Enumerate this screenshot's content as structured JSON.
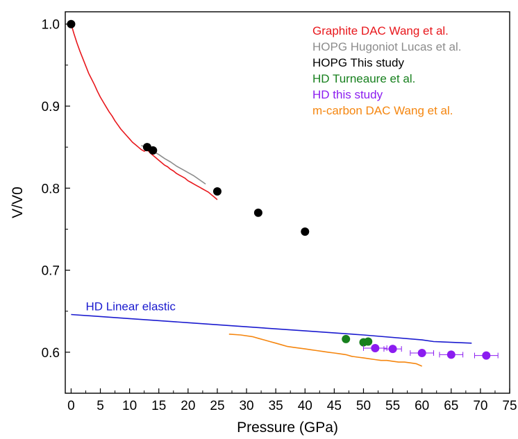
{
  "chart_data": {
    "type": "scatter",
    "title": "",
    "xlabel": "Pressure (GPa)",
    "ylabel": "V/V0",
    "xlim": [
      -1,
      75
    ],
    "ylim": [
      0.55,
      1.015
    ],
    "xticks": [
      0,
      5,
      10,
      15,
      20,
      25,
      30,
      35,
      40,
      45,
      50,
      55,
      60,
      65,
      70,
      75
    ],
    "yticks": [
      0.6,
      0.7,
      0.8,
      0.9,
      1.0
    ],
    "ytick_labels": [
      "0.6",
      "0.7",
      "0.8",
      "0.9",
      "1.0"
    ],
    "grid": false,
    "legend_position": "top-right",
    "series": [
      {
        "name": "Graphite DAC  Wang et al.",
        "kind": "line",
        "color": "#e8171c",
        "x": [
          0,
          0.5,
          1,
          1.5,
          2,
          2.5,
          3,
          3.5,
          4,
          4.5,
          5,
          5.5,
          6,
          6.5,
          7,
          7.5,
          8,
          8.5,
          9,
          9.5,
          10,
          10.5,
          11,
          11.5,
          12,
          12.5,
          13,
          13.5,
          14,
          14.5,
          15,
          15.5,
          16,
          16.5,
          17,
          17.5,
          18,
          18.5,
          19,
          19.5,
          20,
          20.5,
          21,
          21.5,
          22,
          22.5,
          23,
          23.5,
          24,
          24.5,
          25
        ],
        "y": [
          1.0,
          0.988,
          0.977,
          0.967,
          0.958,
          0.949,
          0.94,
          0.933,
          0.926,
          0.918,
          0.911,
          0.905,
          0.899,
          0.893,
          0.888,
          0.882,
          0.877,
          0.872,
          0.868,
          0.864,
          0.86,
          0.856,
          0.853,
          0.85,
          0.847,
          0.845,
          0.847,
          0.843,
          0.84,
          0.837,
          0.834,
          0.831,
          0.828,
          0.826,
          0.823,
          0.821,
          0.818,
          0.816,
          0.814,
          0.812,
          0.809,
          0.807,
          0.805,
          0.803,
          0.801,
          0.799,
          0.797,
          0.795,
          0.792,
          0.789,
          0.786
        ]
      },
      {
        "name": "HOPG Hugoniot Lucas et al.",
        "kind": "line",
        "color": "#8c8c8c",
        "x": [
          12,
          13,
          14,
          15,
          16,
          17,
          18,
          19,
          20,
          21,
          22,
          23
        ],
        "y": [
          0.852,
          0.849,
          0.845,
          0.841,
          0.836,
          0.832,
          0.827,
          0.823,
          0.819,
          0.815,
          0.81,
          0.805
        ]
      },
      {
        "name": "HOPG This study",
        "kind": "scatter",
        "color": "#000000",
        "x": [
          0,
          13,
          14,
          25,
          32,
          40
        ],
        "y": [
          1.0,
          0.85,
          0.846,
          0.796,
          0.77,
          0.747
        ]
      },
      {
        "name": "HD Turneaure et al.",
        "kind": "scatter",
        "color": "#17801e",
        "x": [
          47,
          50,
          50.8
        ],
        "y": [
          0.616,
          0.612,
          0.613
        ]
      },
      {
        "name": "HD this study",
        "kind": "scatter",
        "color": "#8b1cf0",
        "x": [
          52,
          55,
          60,
          65,
          71
        ],
        "y": [
          0.605,
          0.604,
          0.599,
          0.597,
          0.596
        ],
        "xerr": [
          2,
          1.5,
          2,
          2,
          2
        ]
      },
      {
        "name": "m-carbon DAC Wang et al.",
        "kind": "line",
        "color": "#f5860f",
        "x": [
          27,
          29,
          31,
          32,
          33,
          34,
          35,
          36,
          37,
          38,
          39,
          40,
          41,
          42,
          43,
          44,
          45,
          46,
          47,
          48,
          49,
          50,
          51,
          52,
          53,
          54,
          55,
          56,
          57,
          58,
          59,
          60
        ],
        "y": [
          0.622,
          0.621,
          0.619,
          0.617,
          0.615,
          0.613,
          0.611,
          0.609,
          0.607,
          0.606,
          0.605,
          0.604,
          0.603,
          0.602,
          0.601,
          0.6,
          0.599,
          0.598,
          0.597,
          0.595,
          0.594,
          0.593,
          0.592,
          0.591,
          0.59,
          0.59,
          0.589,
          0.588,
          0.588,
          0.587,
          0.586,
          0.583
        ]
      },
      {
        "name": "HD Linear elastic",
        "kind": "line",
        "color": "#1a1acf",
        "x": [
          0,
          10,
          20,
          30,
          40,
          50,
          60,
          62,
          68.5
        ],
        "y": [
          0.646,
          0.641,
          0.636,
          0.631,
          0.626,
          0.621,
          0.615,
          0.613,
          0.611
        ]
      }
    ],
    "legend": [
      {
        "label": "Graphite DAC  Wang et al.",
        "color": "#e8171c"
      },
      {
        "label": "HOPG Hugoniot Lucas et al.",
        "color": "#8c8c8c"
      },
      {
        "label": "HOPG This study",
        "color": "#000000"
      },
      {
        "label": "HD Turneaure et al.",
        "color": "#17801e"
      },
      {
        "label": "HD this study",
        "color": "#8b1cf0"
      },
      {
        "label": "m-carbon DAC Wang et al.",
        "color": "#f5860f"
      }
    ],
    "annotations": [
      {
        "text": "HD Linear elastic",
        "color": "#1a1acf",
        "x": 2.5,
        "y": 0.651
      }
    ]
  }
}
